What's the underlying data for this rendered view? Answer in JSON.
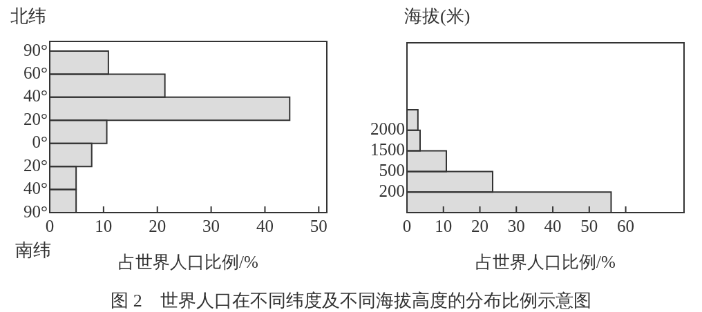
{
  "chart_data": [
    {
      "type": "bar",
      "orientation": "horizontal",
      "ylabel": "北纬",
      "xlabel": "占世界人口比例/%",
      "annotations": [
        "90°",
        "60°",
        "40°",
        "20°",
        "0°",
        "20°",
        "40°",
        "90°",
        "南纬"
      ],
      "categories": [
        null,
        null,
        null,
        null,
        null,
        null,
        null
      ],
      "values": [
        10.9,
        21.4,
        44.6,
        10.6,
        7.8,
        4.9,
        4.9
      ],
      "color": "#dcdcdc",
      "xlim": [
        0,
        51.5
      ],
      "xticks": [
        0,
        10,
        20,
        30,
        40,
        50
      ],
      "grid": false
    },
    {
      "type": "bar",
      "orientation": "horizontal",
      "ylabel": "海拔(米)",
      "xlabel": "占世界人口比例/%",
      "title": "图 2　世界人口在不同纬度及不同海拔高度的分布比例示意图",
      "annotations": [
        "2000",
        "1500",
        "500",
        "200"
      ],
      "categories": [
        null,
        null,
        null,
        null,
        null
      ],
      "values": [
        3.0,
        3.6,
        10.8,
        23.5,
        56
      ],
      "color": "#dcdcdc",
      "xlim": [
        0,
        76
      ],
      "xticks": [
        0,
        10,
        20,
        30,
        40,
        50,
        60
      ],
      "grid": false
    }
  ]
}
